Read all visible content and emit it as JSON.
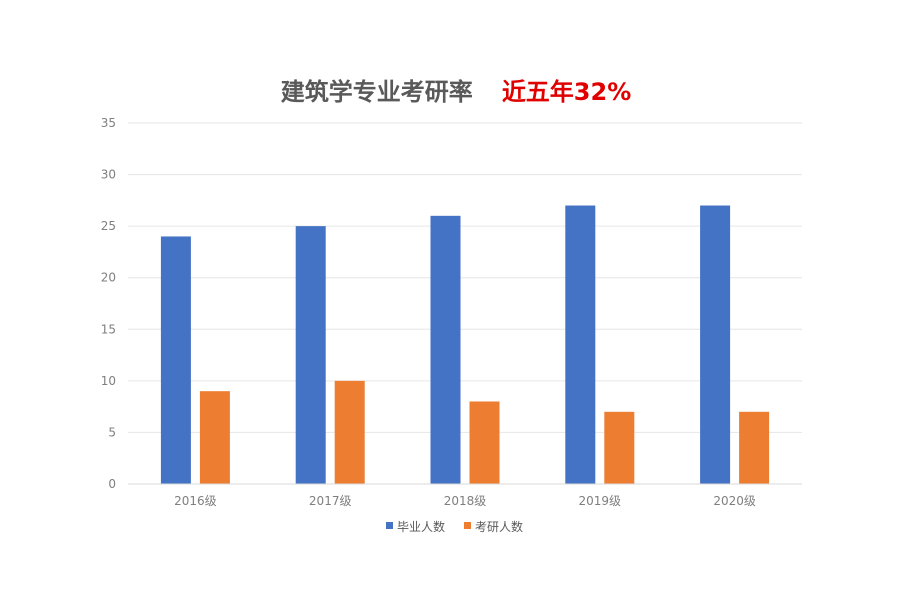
{
  "chart_data": {
    "type": "bar",
    "title": "建筑学专业考研率",
    "subtitle": "近五年32%",
    "categories": [
      "2016级",
      "2017级",
      "2018级",
      "2019级",
      "2020级"
    ],
    "series": [
      {
        "name": "毕业人数",
        "values": [
          24,
          25,
          26,
          27,
          27
        ],
        "color": "#4472c4"
      },
      {
        "name": "考研人数",
        "values": [
          9,
          10,
          8,
          7,
          7
        ],
        "color": "#ed7d31"
      }
    ],
    "ylim": [
      0,
      35
    ],
    "yticks": [
      0,
      5,
      10,
      15,
      20,
      25,
      30,
      35
    ],
    "ytick_labels": [
      "0",
      "5",
      "10",
      "15",
      "20",
      "25",
      "30",
      "35"
    ],
    "grid": true,
    "legend_position": "bottom",
    "colors": {
      "title": "#595959",
      "subtitle": "#e00000",
      "grid": "#e6e6e6"
    }
  }
}
